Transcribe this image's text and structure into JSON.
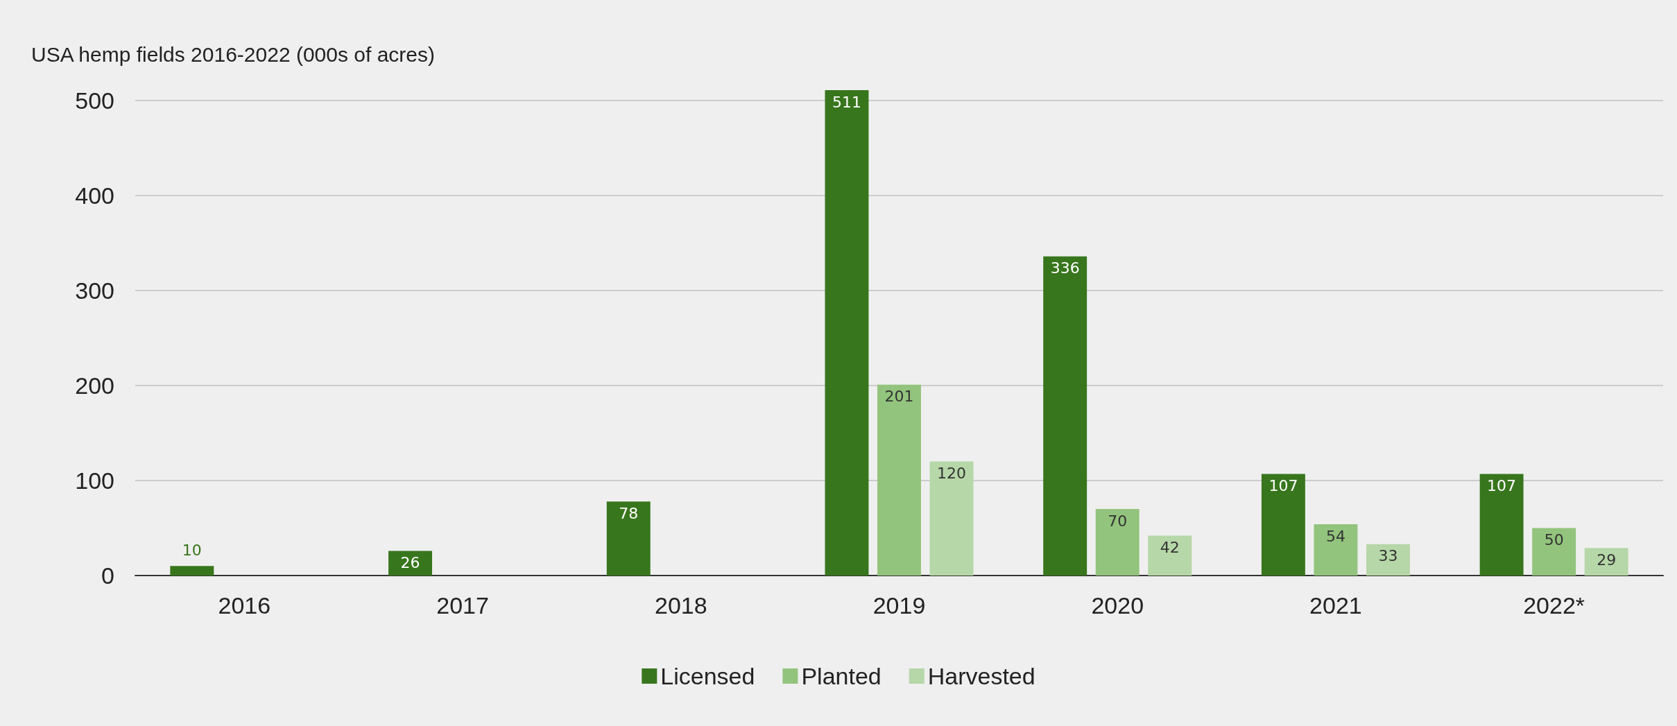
{
  "chart_data": {
    "type": "bar",
    "title": "USA hemp fields 2016-2022 (000s of acres)",
    "categories": [
      "2016",
      "2017",
      "2018",
      "2019",
      "2020",
      "2021",
      "2022*"
    ],
    "series": [
      {
        "name": "Licensed",
        "color": "#38761d",
        "values": [
          10,
          26,
          78,
          511,
          336,
          107,
          107
        ]
      },
      {
        "name": "Planted",
        "color": "#93c47d",
        "values": [
          null,
          null,
          null,
          201,
          70,
          54,
          50
        ]
      },
      {
        "name": "Harvested",
        "color": "#b6d7a8",
        "values": [
          null,
          null,
          null,
          120,
          42,
          33,
          29
        ]
      }
    ],
    "ylim": [
      0,
      511
    ],
    "yticks": [
      0,
      100,
      200,
      300,
      400,
      500
    ],
    "grid": "y",
    "legend": "bottom",
    "data_labels": true
  }
}
